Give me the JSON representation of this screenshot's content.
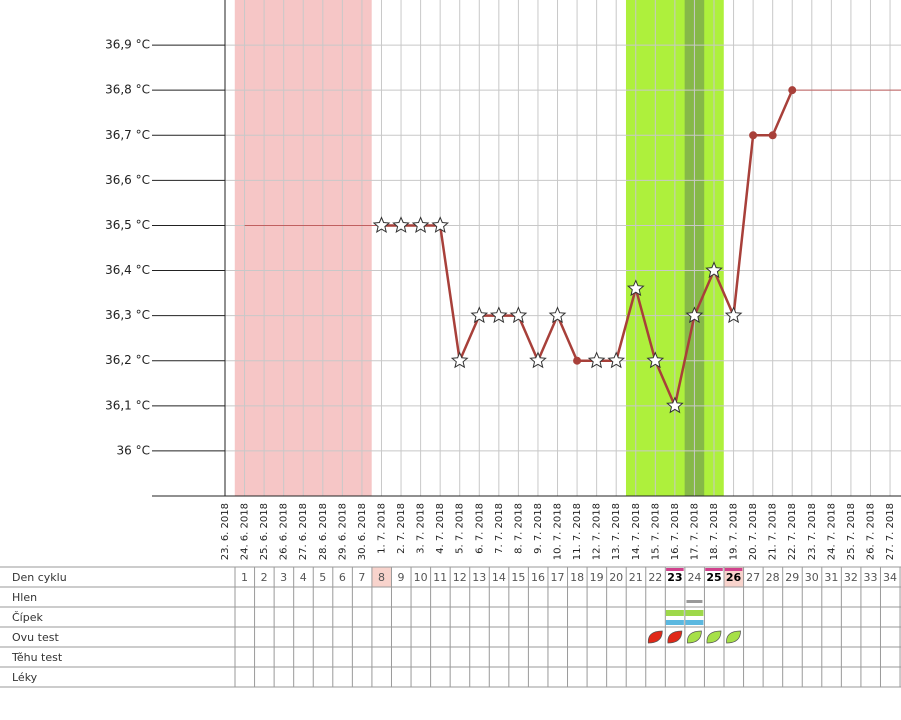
{
  "chart_data": {
    "type": "line",
    "x": [
      "23. 6. 2018",
      "24. 6. 2018",
      "25. 6. 2018",
      "26. 6. 2018",
      "27. 6. 2018",
      "28. 6. 2018",
      "29. 6. 2018",
      "30. 6. 2018",
      "1. 7. 2018",
      "2. 7. 2018",
      "3. 7. 2018",
      "4. 7. 2018",
      "5. 7. 2018",
      "6. 7. 2018",
      "7. 7. 2018",
      "8. 7. 2018",
      "9. 7. 2018",
      "10. 7. 2018",
      "11. 7. 2018",
      "12. 7. 2018",
      "13. 7. 2018",
      "14. 7. 2018",
      "15. 7. 2018",
      "16. 7. 2018",
      "17. 7. 2018",
      "18. 7. 2018",
      "19. 7. 2018",
      "20. 7. 2018",
      "21. 7. 2018",
      "22. 7. 2018",
      "23. 7. 2018",
      "24. 7. 2018",
      "25. 7. 2018",
      "26. 7. 2018",
      "27. 7. 2018"
    ],
    "ylim": [
      35.9,
      37.0
    ],
    "yticks": [
      {
        "value": 36,
        "label": "36 °C"
      },
      {
        "value": 36.1,
        "label": "36,1 °C"
      },
      {
        "value": 36.2,
        "label": "36,2 °C"
      },
      {
        "value": 36.3,
        "label": "36,3 °C"
      },
      {
        "value": 36.4,
        "label": "36,4 °C"
      },
      {
        "value": 36.5,
        "label": "36,5 °C"
      },
      {
        "value": 36.6,
        "label": "36,6 °C"
      },
      {
        "value": 36.7,
        "label": "36,7 °C"
      },
      {
        "value": 36.8,
        "label": "36,8 °C"
      },
      {
        "value": 36.9,
        "label": "36,9 °C"
      }
    ],
    "grid": true,
    "bands": [
      {
        "from": "24. 6. 2018",
        "to": "30. 6. 2018",
        "color": "#f6c6c6"
      },
      {
        "from": "14. 7. 2018",
        "to": "18. 7. 2018",
        "color": "#aef03c"
      },
      {
        "from": "17. 7. 2018",
        "to": "17. 7. 2018",
        "color": "#86b848"
      }
    ],
    "series": [
      {
        "color": "#a8403a",
        "width": 2.5,
        "values": [
          null,
          null,
          null,
          null,
          null,
          null,
          null,
          null,
          36.5,
          36.5,
          36.5,
          36.5,
          36.2,
          36.3,
          36.3,
          36.3,
          36.2,
          36.3,
          36.2,
          36.2,
          36.2,
          36.36,
          36.2,
          36.1,
          36.3,
          36.4,
          36.3,
          36.7,
          36.7,
          36.8,
          null,
          null,
          null,
          null,
          null
        ],
        "markers": [
          null,
          null,
          null,
          null,
          null,
          null,
          null,
          null,
          "star",
          "star",
          "star",
          "star",
          "star",
          "star",
          "star",
          "star",
          "star",
          "star",
          "dot",
          "star",
          "star",
          "star",
          "star",
          "star",
          "star",
          "star",
          "star",
          "dot",
          "dot",
          "dot",
          null,
          null,
          null,
          null,
          null
        ]
      },
      {
        "color": "#c06060",
        "width": 1,
        "values": [
          null,
          36.5,
          36.5,
          36.5,
          36.5,
          36.5,
          36.5,
          36.5,
          36.5,
          null,
          null,
          null,
          null,
          null,
          null,
          null,
          null,
          null,
          null,
          null,
          null,
          null,
          null,
          null,
          null,
          null,
          null,
          null,
          null,
          36.8,
          36.8,
          36.8,
          36.8,
          36.8,
          36.8
        ]
      }
    ]
  },
  "cycle_table": {
    "row_labels": [
      "Den cyklu",
      "Hlen",
      "Čípek",
      "Ovu test",
      "Těhu test",
      "Léky"
    ],
    "days": [
      1,
      2,
      3,
      4,
      5,
      6,
      7,
      8,
      9,
      10,
      11,
      12,
      13,
      14,
      15,
      16,
      17,
      18,
      19,
      20,
      21,
      22,
      23,
      24,
      25,
      26,
      27,
      28,
      29,
      30,
      31,
      32,
      33,
      34
    ]
  }
}
